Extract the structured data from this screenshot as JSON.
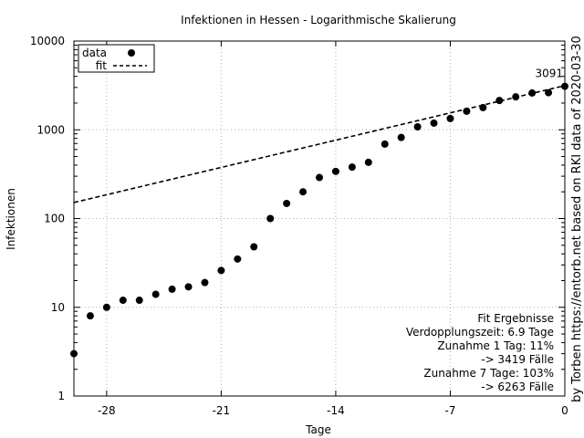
{
  "chart_data": {
    "type": "scatter",
    "title": "Infektionen in Hessen - Logarithmische Skalierung",
    "xlabel": "Tage",
    "ylabel": "Infektionen",
    "right_label": "by Torben https://entorb.net based on RKI data of 2020-03-30",
    "xlim": [
      -30,
      0
    ],
    "ylim": [
      1,
      10000
    ],
    "y_scale": "log",
    "grid": true,
    "legend_position": "top-left",
    "x_ticks": [
      {
        "value": -28,
        "label": "-28"
      },
      {
        "value": -21,
        "label": "-21"
      },
      {
        "value": -14,
        "label": "-14"
      },
      {
        "value": -7,
        "label": "-7"
      },
      {
        "value": 0,
        "label": "0"
      }
    ],
    "y_ticks": [
      {
        "value": 1,
        "label": "1"
      },
      {
        "value": 10,
        "label": "10"
      },
      {
        "value": 100,
        "label": "100"
      },
      {
        "value": 1000,
        "label": "1000"
      },
      {
        "value": 10000,
        "label": "10000"
      }
    ],
    "series": [
      {
        "name": "data",
        "style": "points",
        "color": "#000000",
        "x": [
          -30,
          -29,
          -28,
          -27,
          -26,
          -25,
          -24,
          -23,
          -22,
          -21,
          -20,
          -19,
          -18,
          -17,
          -16,
          -15,
          -14,
          -13,
          -12,
          -11,
          -10,
          -9,
          -8,
          -7,
          -6,
          -5,
          -4,
          -3,
          -2,
          -1,
          0
        ],
        "y": [
          3,
          8,
          10,
          12,
          12,
          14,
          16,
          17,
          19,
          26,
          35,
          48,
          100,
          148,
          200,
          290,
          340,
          380,
          430,
          690,
          820,
          1080,
          1190,
          1340,
          1620,
          1780,
          2140,
          2350,
          2600,
          2620,
          3091
        ]
      },
      {
        "name": "fit",
        "style": "dashed",
        "color": "#000000",
        "x": [
          -31,
          0
        ],
        "y": [
          137,
          3150
        ]
      }
    ],
    "annotations": [
      {
        "text": "3091",
        "x": 0,
        "y": 3091
      }
    ],
    "fit_box": [
      "Fit Ergebnisse",
      "Verdopplungszeit: 6.9 Tage",
      "Zunahme 1 Tag: 11%",
      "-> 3419 Fälle",
      "Zunahme 7 Tage: 103%",
      "-> 6263 Fälle"
    ]
  }
}
